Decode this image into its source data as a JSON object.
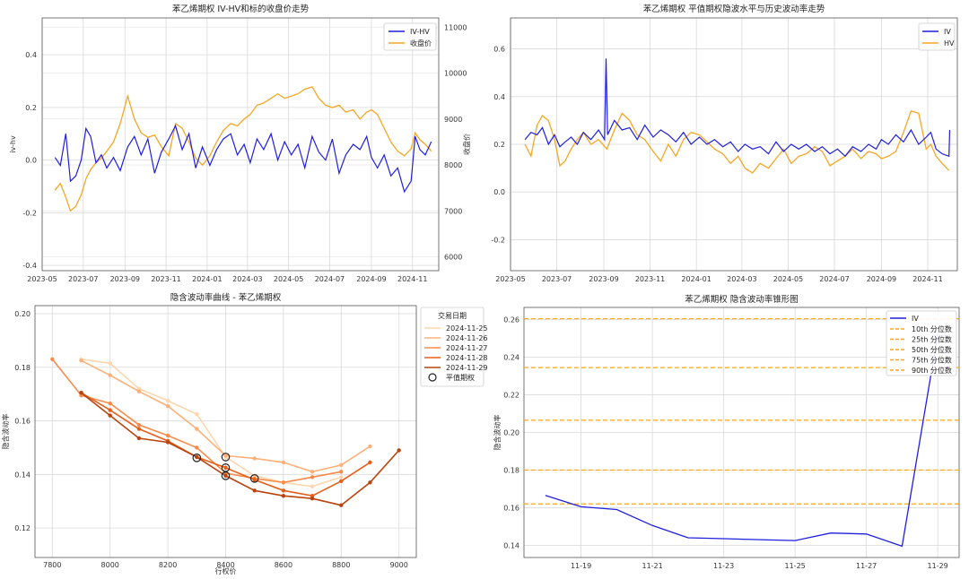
{
  "chart_data": [
    {
      "type": "line",
      "title": "苯乙烯期权 IV-HV和标的收盘价走势",
      "ylabel": "iv-hv",
      "y2label": "收盘价",
      "ylim": [
        -0.42,
        0.54
      ],
      "y2lim": [
        5700,
        11200
      ],
      "yticks": [
        -0.4,
        -0.2,
        0.0,
        0.2,
        0.4
      ],
      "y2ticks": [
        6000,
        7000,
        8000,
        9000,
        10000,
        11000
      ],
      "xlim": [
        "2023-05-01",
        "2024-12-10"
      ],
      "xticks": [
        "2023-05",
        "2023-07",
        "2023-09",
        "2023-11",
        "2024-01",
        "2024-03",
        "2024-05",
        "2024-07",
        "2024-09",
        "2024-11"
      ],
      "legend": [
        "IV-HV",
        "收盘价"
      ],
      "colors": {
        "iv_hv": "#1f1fde",
        "close": "#f5a623"
      },
      "series": [
        {
          "name": "IV-HV",
          "axis": "left",
          "x": [
            "2023-05-20",
            "2023-05-28",
            "2023-06-05",
            "2023-06-12",
            "2023-06-20",
            "2023-06-28",
            "2023-07-05",
            "2023-07-12",
            "2023-07-20",
            "2023-07-28",
            "2023-08-05",
            "2023-08-15",
            "2023-08-25",
            "2023-09-05",
            "2023-09-15",
            "2023-09-25",
            "2023-10-05",
            "2023-10-15",
            "2023-10-25",
            "2023-11-05",
            "2023-11-15",
            "2023-11-25",
            "2023-12-05",
            "2023-12-15",
            "2023-12-25",
            "2024-01-05",
            "2024-01-15",
            "2024-01-25",
            "2024-02-05",
            "2024-02-15",
            "2024-02-25",
            "2024-03-05",
            "2024-03-15",
            "2024-03-25",
            "2024-04-05",
            "2024-04-15",
            "2024-04-25",
            "2024-05-05",
            "2024-05-15",
            "2024-05-25",
            "2024-06-05",
            "2024-06-15",
            "2024-06-25",
            "2024-07-05",
            "2024-07-15",
            "2024-07-25",
            "2024-08-05",
            "2024-08-15",
            "2024-08-25",
            "2024-09-01",
            "2024-09-10",
            "2024-09-20",
            "2024-09-30",
            "2024-10-10",
            "2024-10-20",
            "2024-10-30",
            "2024-11-05",
            "2024-11-12",
            "2024-11-20",
            "2024-11-29"
          ],
          "values": [
            0.01,
            -0.02,
            0.1,
            -0.08,
            -0.06,
            0.0,
            0.12,
            0.09,
            -0.01,
            0.02,
            -0.03,
            0.01,
            -0.04,
            0.05,
            0.09,
            0.02,
            0.08,
            -0.05,
            0.03,
            0.08,
            0.13,
            0.04,
            0.1,
            -0.03,
            0.05,
            -0.02,
            0.04,
            0.08,
            0.1,
            0.02,
            0.06,
            -0.01,
            0.08,
            0.04,
            0.1,
            0.0,
            0.07,
            0.02,
            0.06,
            -0.03,
            0.09,
            0.03,
            0.0,
            0.08,
            -0.05,
            0.02,
            0.06,
            0.04,
            0.09,
            0.01,
            -0.03,
            0.02,
            -0.06,
            -0.03,
            -0.12,
            -0.08,
            0.09,
            0.04,
            0.02,
            0.07
          ]
        },
        {
          "name": "收盘价",
          "axis": "right",
          "x": [
            "2023-05-20",
            "2023-05-28",
            "2023-06-05",
            "2023-06-12",
            "2023-06-20",
            "2023-06-28",
            "2023-07-05",
            "2023-07-12",
            "2023-07-20",
            "2023-07-28",
            "2023-08-05",
            "2023-08-15",
            "2023-08-25",
            "2023-09-05",
            "2023-09-15",
            "2023-09-25",
            "2023-10-05",
            "2023-10-15",
            "2023-10-25",
            "2023-11-05",
            "2023-11-15",
            "2023-11-25",
            "2023-12-05",
            "2023-12-15",
            "2023-12-25",
            "2024-01-05",
            "2024-01-15",
            "2024-01-25",
            "2024-02-05",
            "2024-02-15",
            "2024-02-25",
            "2024-03-05",
            "2024-03-15",
            "2024-03-25",
            "2024-04-05",
            "2024-04-15",
            "2024-04-25",
            "2024-05-05",
            "2024-05-15",
            "2024-05-25",
            "2024-06-05",
            "2024-06-15",
            "2024-06-25",
            "2024-07-05",
            "2024-07-15",
            "2024-07-25",
            "2024-08-05",
            "2024-08-15",
            "2024-08-25",
            "2024-09-01",
            "2024-09-10",
            "2024-09-20",
            "2024-09-30",
            "2024-10-10",
            "2024-10-20",
            "2024-10-30",
            "2024-11-05",
            "2024-11-12",
            "2024-11-20",
            "2024-11-29"
          ],
          "values": [
            7450,
            7600,
            7300,
            7000,
            7100,
            7350,
            7700,
            7900,
            8050,
            8150,
            8300,
            8500,
            8900,
            9500,
            9000,
            8700,
            8600,
            8650,
            8400,
            8200,
            8900,
            8800,
            8500,
            8150,
            8000,
            8200,
            8500,
            8750,
            8900,
            8850,
            9000,
            9100,
            9300,
            9350,
            9450,
            9550,
            9450,
            9500,
            9550,
            9650,
            9700,
            9450,
            9300,
            9250,
            9300,
            9150,
            9200,
            9000,
            9150,
            9200,
            9100,
            8800,
            8500,
            8300,
            8200,
            8350,
            8700,
            8550,
            8450,
            8300
          ]
        }
      ]
    },
    {
      "type": "line",
      "title": "苯乙烯期权 平值期权隐波水平与历史波动率走势",
      "ylim": [
        -0.33,
        0.73
      ],
      "yticks": [
        -0.2,
        0.0,
        0.2,
        0.4,
        0.6
      ],
      "xlim": [
        "2023-05-01",
        "2024-12-10"
      ],
      "xticks": [
        "2023-05",
        "2023-07",
        "2023-09",
        "2023-11",
        "2024-01",
        "2024-03",
        "2024-05",
        "2024-07",
        "2024-09",
        "2024-11"
      ],
      "legend": [
        "IV",
        "HV"
      ],
      "colors": {
        "iv": "#1f1fde",
        "hv": "#f5a623"
      },
      "series": [
        {
          "name": "IV",
          "x": [
            "2023-05-20",
            "2023-05-28",
            "2023-06-05",
            "2023-06-12",
            "2023-06-20",
            "2023-06-28",
            "2023-07-05",
            "2023-07-12",
            "2023-07-20",
            "2023-07-28",
            "2023-08-05",
            "2023-08-15",
            "2023-08-25",
            "2023-09-02",
            "2023-09-04",
            "2023-09-06",
            "2023-09-15",
            "2023-09-25",
            "2023-10-05",
            "2023-10-15",
            "2023-10-25",
            "2023-11-05",
            "2023-11-15",
            "2023-11-25",
            "2023-12-05",
            "2023-12-15",
            "2023-12-25",
            "2024-01-05",
            "2024-01-15",
            "2024-01-25",
            "2024-02-05",
            "2024-02-15",
            "2024-02-25",
            "2024-03-05",
            "2024-03-15",
            "2024-03-25",
            "2024-04-05",
            "2024-04-15",
            "2024-04-25",
            "2024-05-05",
            "2024-05-15",
            "2024-05-25",
            "2024-06-05",
            "2024-06-15",
            "2024-06-25",
            "2024-07-05",
            "2024-07-15",
            "2024-07-25",
            "2024-08-05",
            "2024-08-15",
            "2024-08-25",
            "2024-09-01",
            "2024-09-10",
            "2024-09-20",
            "2024-09-30",
            "2024-10-10",
            "2024-10-20",
            "2024-10-30",
            "2024-11-05",
            "2024-11-12",
            "2024-11-20",
            "2024-11-29",
            "2024-11-30"
          ],
          "values": [
            0.22,
            0.25,
            0.24,
            0.27,
            0.2,
            0.24,
            0.19,
            0.21,
            0.23,
            0.2,
            0.25,
            0.22,
            0.26,
            0.22,
            0.56,
            0.24,
            0.3,
            0.26,
            0.27,
            0.22,
            0.28,
            0.23,
            0.26,
            0.24,
            0.21,
            0.25,
            0.2,
            0.23,
            0.2,
            0.22,
            0.19,
            0.21,
            0.17,
            0.2,
            0.18,
            0.19,
            0.16,
            0.21,
            0.17,
            0.2,
            0.18,
            0.2,
            0.17,
            0.19,
            0.16,
            0.18,
            0.15,
            0.19,
            0.17,
            0.2,
            0.18,
            0.22,
            0.2,
            0.24,
            0.21,
            0.26,
            0.2,
            0.23,
            0.25,
            0.18,
            0.16,
            0.15,
            0.26
          ]
        },
        {
          "name": "HV",
          "x": [
            "2023-05-20",
            "2023-05-28",
            "2023-06-05",
            "2023-06-12",
            "2023-06-20",
            "2023-06-28",
            "2023-07-05",
            "2023-07-12",
            "2023-07-20",
            "2023-07-28",
            "2023-08-05",
            "2023-08-15",
            "2023-08-25",
            "2023-09-05",
            "2023-09-15",
            "2023-09-25",
            "2023-10-05",
            "2023-10-15",
            "2023-10-25",
            "2023-11-05",
            "2023-11-15",
            "2023-11-25",
            "2023-12-05",
            "2023-12-15",
            "2023-12-25",
            "2024-01-05",
            "2024-01-15",
            "2024-01-25",
            "2024-02-05",
            "2024-02-15",
            "2024-02-25",
            "2024-03-05",
            "2024-03-15",
            "2024-03-25",
            "2024-04-05",
            "2024-04-15",
            "2024-04-25",
            "2024-05-05",
            "2024-05-15",
            "2024-05-25",
            "2024-06-05",
            "2024-06-15",
            "2024-06-25",
            "2024-07-05",
            "2024-07-15",
            "2024-07-25",
            "2024-08-05",
            "2024-08-15",
            "2024-08-25",
            "2024-09-01",
            "2024-09-10",
            "2024-09-20",
            "2024-09-30",
            "2024-10-10",
            "2024-10-20",
            "2024-10-30",
            "2024-11-05",
            "2024-11-12",
            "2024-11-20",
            "2024-11-29"
          ],
          "values": [
            0.2,
            0.15,
            0.28,
            0.32,
            0.3,
            0.22,
            0.11,
            0.13,
            0.18,
            0.22,
            0.25,
            0.2,
            0.22,
            0.18,
            0.26,
            0.33,
            0.3,
            0.24,
            0.22,
            0.17,
            0.13,
            0.2,
            0.15,
            0.22,
            0.25,
            0.24,
            0.21,
            0.18,
            0.16,
            0.12,
            0.15,
            0.1,
            0.08,
            0.12,
            0.1,
            0.14,
            0.18,
            0.12,
            0.15,
            0.16,
            0.19,
            0.17,
            0.11,
            0.13,
            0.15,
            0.18,
            0.14,
            0.17,
            0.16,
            0.14,
            0.15,
            0.17,
            0.25,
            0.34,
            0.33,
            0.18,
            0.2,
            0.15,
            0.12,
            0.09
          ]
        }
      ]
    },
    {
      "type": "line",
      "title": "隐含波动率曲线 - 苯乙烯期权",
      "xlabel": "行权价",
      "ylabel": "隐含波动率",
      "xlim": [
        7740,
        9060
      ],
      "ylim": [
        0.109,
        0.203
      ],
      "xticks": [
        7800,
        8000,
        8200,
        8400,
        8600,
        8800,
        9000
      ],
      "yticks": [
        0.12,
        0.14,
        0.16,
        0.18,
        0.2
      ],
      "legend_title": "交易日期",
      "atm_label": "平值期权",
      "series": [
        {
          "name": "2024-11-25",
          "color": "#fdd6ae",
          "x": [
            7900,
            8000,
            8100,
            8200,
            8300,
            8400,
            8500,
            8600,
            8700,
            8800
          ],
          "values": [
            0.183,
            0.1815,
            0.172,
            0.1675,
            0.1625,
            0.1465,
            0.1395,
            0.137,
            0.1355,
            0.139
          ]
        },
        {
          "name": "2024-11-26",
          "color": "#fdb07a",
          "x": [
            7900,
            8000,
            8100,
            8200,
            8300,
            8400,
            8500,
            8600,
            8700,
            8800,
            8900
          ],
          "values": [
            0.1825,
            0.177,
            0.171,
            0.1655,
            0.157,
            0.147,
            0.146,
            0.1445,
            0.141,
            0.1435,
            0.1505
          ]
        },
        {
          "name": "2024-11-27",
          "color": "#f98b4a",
          "x": [
            7800,
            7900,
            8000,
            8100,
            8200,
            8300,
            8400,
            8500,
            8600,
            8700,
            8800
          ],
          "values": [
            0.183,
            0.1695,
            0.1665,
            0.1585,
            0.1545,
            0.15,
            0.1405,
            0.1385,
            0.137,
            0.139,
            0.141
          ]
        },
        {
          "name": "2024-11-28",
          "color": "#e55f1a",
          "x": [
            7900,
            8000,
            8100,
            8200,
            8300,
            8400,
            8500,
            8600,
            8700,
            8800,
            8900
          ],
          "values": [
            0.1705,
            0.164,
            0.157,
            0.1525,
            0.1465,
            0.1425,
            0.138,
            0.134,
            0.132,
            0.1375,
            0.1445
          ]
        },
        {
          "name": "2024-11-29",
          "color": "#b8440f",
          "x": [
            7900,
            8000,
            8100,
            8200,
            8300,
            8400,
            8500,
            8600,
            8700,
            8800,
            8900,
            9000
          ],
          "values": [
            0.1705,
            0.162,
            0.1535,
            0.152,
            0.1465,
            0.1395,
            0.134,
            0.132,
            0.131,
            0.1285,
            0.137,
            0.149
          ]
        }
      ],
      "atm_points": [
        {
          "x": 8300,
          "y": 0.1462
        },
        {
          "x": 8400,
          "y": 0.1465
        },
        {
          "x": 8400,
          "y": 0.1425
        },
        {
          "x": 8400,
          "y": 0.1395
        },
        {
          "x": 8500,
          "y": 0.1385
        }
      ]
    },
    {
      "type": "line",
      "title": "苯乙烯期权 隐含波动率锥形图",
      "ylabel": "隐含波动率",
      "xlim": [
        -0.6,
        11.6
      ],
      "ylim": [
        0.1335,
        0.2665
      ],
      "yticks": [
        0.14,
        0.16,
        0.18,
        0.2,
        0.22,
        0.24,
        0.26
      ],
      "xticks": [
        "11-19",
        "11-21",
        "11-23",
        "11-25",
        "11-27",
        "11-29"
      ],
      "xtick_pos": [
        1,
        3,
        5,
        7,
        9,
        11
      ],
      "series": [
        {
          "name": "IV",
          "color": "#1f1fde",
          "x": [
            0,
            1,
            2,
            3,
            4,
            5,
            6,
            7,
            8,
            9,
            10,
            11
          ],
          "values": [
            0.1665,
            0.1605,
            0.159,
            0.1505,
            0.144,
            0.1435,
            0.143,
            0.1425,
            0.1465,
            0.146,
            0.1395,
            0.252
          ]
        }
      ],
      "percentiles": [
        {
          "name": "10th 分位数",
          "value": 0.162
        },
        {
          "name": "25th 分位数",
          "value": 0.18
        },
        {
          "name": "50th 分位数",
          "value": 0.2065
        },
        {
          "name": "75th 分位数",
          "value": 0.2345
        },
        {
          "name": "90th 分位数",
          "value": 0.2605
        }
      ],
      "percentile_color": "#f5a623"
    }
  ]
}
